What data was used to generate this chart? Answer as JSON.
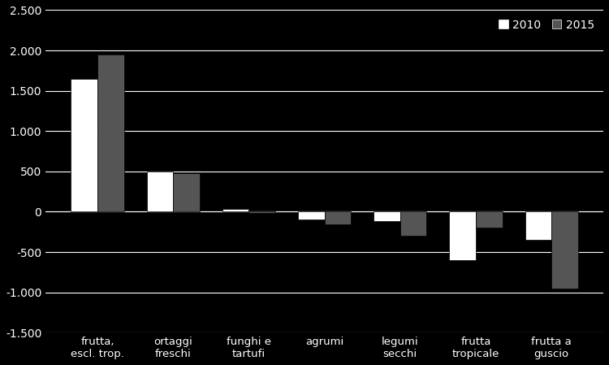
{
  "categories": [
    "frutta,\nescl. trop.",
    "ortaggi\nfreschi",
    "funghi e\ntartufi",
    "agrumi",
    "legumi\nsecchi",
    "frutta\ntropicale",
    "frutta a\nguscio"
  ],
  "values_2010": [
    1650,
    500,
    30,
    -100,
    -120,
    -600,
    -350
  ],
  "values_2015": [
    1950,
    480,
    -20,
    -160,
    -300,
    -200,
    -950
  ],
  "color_2010": "#ffffff",
  "color_2015": "#555555",
  "bar_edge_color": "#000000",
  "background_color": "#000000",
  "text_color": "#ffffff",
  "grid_color": "#ffffff",
  "ylim": [
    -1500,
    2500
  ],
  "yticks": [
    -1500,
    -1000,
    -500,
    0,
    500,
    1000,
    1500,
    2000,
    2500
  ],
  "ytick_labels": [
    "-1.500",
    "-1.000",
    "-500",
    "0",
    "500",
    "1.000",
    "1.500",
    "2.000",
    "2.500"
  ],
  "legend_2010": "2010",
  "legend_2015": "2015",
  "bar_width": 0.35,
  "figsize": [
    7.5,
    4.49
  ],
  "dpi": 100
}
